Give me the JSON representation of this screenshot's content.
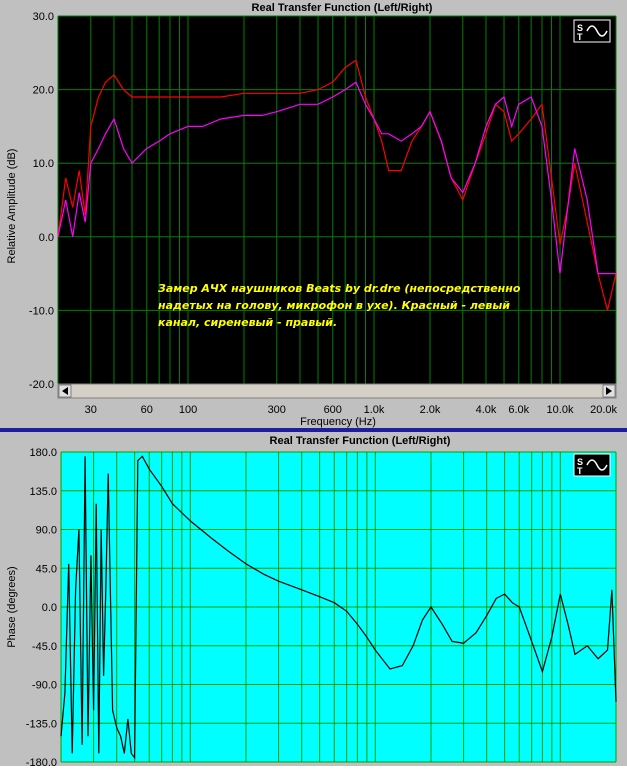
{
  "window": {
    "top_title": "Real Transfer Function (Left/Right)",
    "bottom_title": "Real Transfer Function (Left/Right)"
  },
  "colors": {
    "panel_bg": "#c0c0c0",
    "top_plot_bg": "#000000",
    "top_grid": "#008000",
    "bottom_plot_bg": "#00ffff",
    "bottom_grid": "#00a000",
    "left_channel": "#ff0000",
    "right_channel": "#ff00ff",
    "phase_trace": "#000000",
    "annotation": "#ffff00",
    "divider": "#1e1e9c"
  },
  "chart_data": [
    {
      "type": "line",
      "title": "Real Transfer Function (Left/Right)",
      "xlabel": "Frequency (Hz)",
      "ylabel": "Relative Amplitude (dB)",
      "xscale": "log",
      "xlim": [
        20,
        20000
      ],
      "ylim": [
        -20,
        30
      ],
      "grid": true,
      "xticks": [
        "30",
        "60",
        "100",
        "300",
        "600",
        "1.0k",
        "2.0k",
        "4.0k",
        "6.0k",
        "10.0k",
        "20.0k"
      ],
      "yticks": [
        "30.0",
        "20.0",
        "10.0",
        "0.0",
        "-10.0",
        "-20.0"
      ],
      "annotation_lines": [
        "Замер АЧХ наушников Beats by dr.dre (непосредственно",
        "надетых на голову, микрофон в ухе). Красный - левый",
        "канал, сиреневый - правый."
      ],
      "x": [
        20,
        22,
        24,
        26,
        28,
        30,
        33,
        36,
        40,
        45,
        50,
        60,
        70,
        80,
        100,
        120,
        150,
        200,
        250,
        300,
        400,
        500,
        600,
        700,
        800,
        900,
        1000,
        1100,
        1200,
        1400,
        1600,
        1800,
        2000,
        2300,
        2600,
        3000,
        3500,
        4000,
        4500,
        5000,
        5500,
        6000,
        7000,
        8000,
        9000,
        10000,
        11000,
        12000,
        14000,
        16000,
        18000,
        20000
      ],
      "series": [
        {
          "color": "#ff0000",
          "values": [
            0,
            8,
            4,
            9,
            3,
            15,
            19,
            21,
            22,
            20,
            19,
            19,
            19,
            19,
            19,
            19,
            19,
            19.5,
            19.5,
            19.5,
            19.5,
            20,
            21,
            23,
            24,
            19,
            16,
            13,
            9,
            9,
            13,
            15,
            17,
            13,
            8,
            5,
            10,
            14,
            18,
            17,
            13,
            14,
            16,
            18,
            8,
            -1,
            4,
            10,
            2,
            -5,
            -10,
            -5
          ]
        },
        {
          "color": "#ff00ff",
          "values": [
            0,
            5,
            0,
            6,
            2,
            10,
            12,
            14,
            16,
            12,
            10,
            12,
            13,
            14,
            15,
            15,
            16,
            16.5,
            16.5,
            17,
            18,
            18,
            19,
            20,
            21,
            18,
            16,
            14,
            14,
            13,
            14,
            15,
            17,
            13,
            8,
            6,
            10,
            15,
            18,
            19,
            15,
            18,
            19,
            15,
            5,
            -5,
            4,
            12,
            5,
            -5,
            -5,
            -5
          ]
        }
      ]
    },
    {
      "type": "line",
      "title": "Real Transfer Function (Left/Right)",
      "ylabel": "Phase (degrees)",
      "xscale": "log",
      "xlim": [
        20,
        20000
      ],
      "ylim": [
        -180,
        180
      ],
      "grid": true,
      "yticks": [
        "180.0",
        "135.0",
        "90.0",
        "45.0",
        "0.0",
        "-45.0",
        "-90.0",
        "-135.0",
        "-180.0"
      ],
      "x": [
        20,
        21,
        22,
        23,
        24,
        25,
        26,
        27,
        28,
        29,
        30,
        31,
        32,
        33,
        34,
        35,
        36,
        38,
        40,
        42,
        44,
        46,
        48,
        50,
        52,
        55,
        60,
        70,
        80,
        100,
        130,
        160,
        200,
        250,
        300,
        400,
        500,
        600,
        700,
        800,
        900,
        1000,
        1200,
        1400,
        1600,
        1800,
        2000,
        2300,
        2600,
        3000,
        3500,
        4000,
        4500,
        5000,
        5500,
        6000,
        7000,
        8000,
        9000,
        10000,
        11000,
        12000,
        14000,
        16000,
        18000,
        19000,
        20000
      ],
      "series": [
        {
          "color": "#000000",
          "values": [
            -150,
            -100,
            50,
            -170,
            20,
            90,
            -160,
            175,
            -150,
            60,
            -120,
            120,
            -170,
            90,
            -80,
            30,
            155,
            -120,
            -140,
            -150,
            -170,
            -130,
            -170,
            -175,
            170,
            175,
            160,
            140,
            120,
            100,
            80,
            65,
            50,
            38,
            30,
            20,
            12,
            5,
            -5,
            -20,
            -35,
            -50,
            -72,
            -68,
            -45,
            -15,
            0,
            -20,
            -40,
            -42,
            -30,
            -10,
            10,
            15,
            5,
            0,
            -40,
            -75,
            -35,
            15,
            -20,
            -55,
            -45,
            -60,
            -50,
            20,
            -110
          ]
        }
      ]
    }
  ]
}
